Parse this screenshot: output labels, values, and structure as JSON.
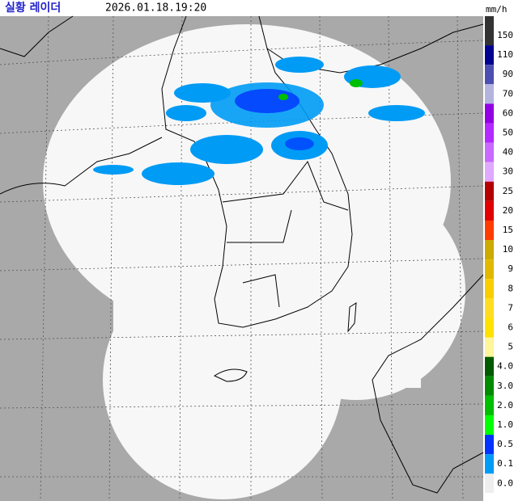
{
  "header": {
    "title": "실황 레이더",
    "timestamp": "2026.01.18.19:20",
    "unit": "mm/h"
  },
  "legend": {
    "levels": [
      {
        "label": "150",
        "color": "#333333"
      },
      {
        "label": "110",
        "color": "#000390"
      },
      {
        "label": "90",
        "color": "#4c4eb1"
      },
      {
        "label": "70",
        "color": "#b3b4de"
      },
      {
        "label": "60",
        "color": "#9300e4"
      },
      {
        "label": "50",
        "color": "#b329ff"
      },
      {
        "label": "40",
        "color": "#c969ff"
      },
      {
        "label": "30",
        "color": "#e0a9ff"
      },
      {
        "label": "25",
        "color": "#b40000"
      },
      {
        "label": "20",
        "color": "#e00000"
      },
      {
        "label": "15",
        "color": "#ff3c00"
      },
      {
        "label": "10",
        "color": "#ccaa00"
      },
      {
        "label": "9",
        "color": "#e0b900"
      },
      {
        "label": "8",
        "color": "#f9cd00"
      },
      {
        "label": "7",
        "color": "#ffdc1f"
      },
      {
        "label": "6",
        "color": "#ffe100"
      },
      {
        "label": "5",
        "color": "#fff59a"
      },
      {
        "label": "4.0",
        "color": "#005a00"
      },
      {
        "label": "3.0",
        "color": "#008c00"
      },
      {
        "label": "2.0",
        "color": "#00be00"
      },
      {
        "label": "1.0",
        "color": "#00ff00"
      },
      {
        "label": "0.5",
        "color": "#0033ff"
      },
      {
        "label": "0.1",
        "color": "#009bf5"
      },
      {
        "label": "0.0",
        "color": "#eeeeee"
      }
    ]
  }
}
